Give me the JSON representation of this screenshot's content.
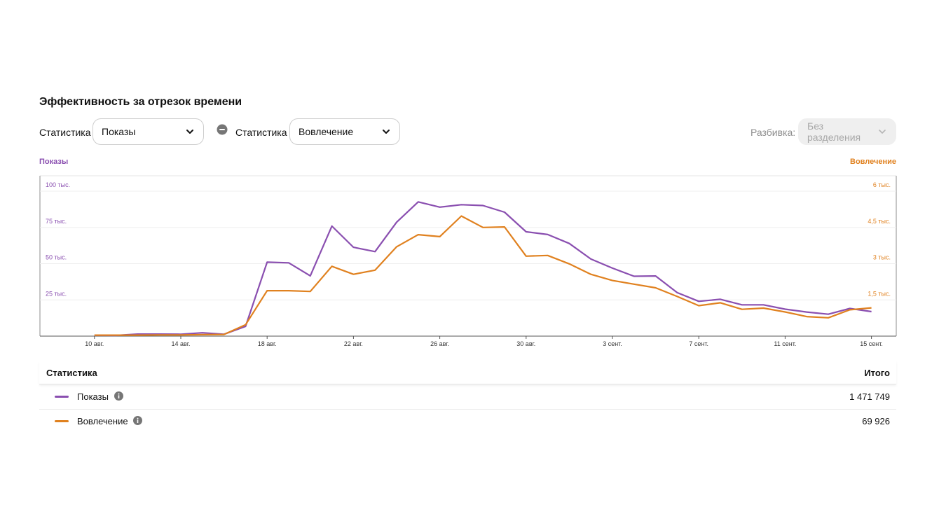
{
  "header": {
    "title": "Эффективность за отрезок времени"
  },
  "controls": {
    "metric1_label": "Статистика",
    "metric1_value": "Показы",
    "metric2_label": "Статистика",
    "metric2_value": "Вовлечение",
    "split_label": "Разбивка:",
    "split_value": "Без разделения"
  },
  "colors": {
    "impressions": "#8a4fb0",
    "engagement": "#e0811f",
    "grid": "#ececec",
    "axis": "#555555"
  },
  "icons": {
    "remove": "minus-circle-icon",
    "chevron": "chevron-down-icon",
    "info": "info-icon"
  },
  "chart_data": {
    "type": "line",
    "x": [
      "9 авг.",
      "10 авг.",
      "11 авг.",
      "12 авг.",
      "13 авг.",
      "14 авг.",
      "15 авг.",
      "16 авг.",
      "17 авг.",
      "18 авг.",
      "19 авг.",
      "20 авг.",
      "21 авг.",
      "22 авг.",
      "23 авг.",
      "24 авг.",
      "25 авг.",
      "26 авг.",
      "27 авг.",
      "28 авг.",
      "29 авг.",
      "30 авг.",
      "31 авг.",
      "1 сент.",
      "2 сент.",
      "3 сент.",
      "4 сент.",
      "5 сент.",
      "6 сент.",
      "7 сент.",
      "8 сент.",
      "9 сент.",
      "10 сент.",
      "11 сент.",
      "12 сент.",
      "13 сент.",
      "14 сент.",
      "15 сент."
    ],
    "x_tick_labels": [
      "10 авг.",
      "14 авг.",
      "18 авг.",
      "22 авг.",
      "26 авг.",
      "30 авг.",
      "3 сент.",
      "7 сент.",
      "11 сент.",
      "15 сент."
    ],
    "x_tick_index": [
      1,
      5,
      9,
      13,
      17,
      21,
      25,
      29,
      33,
      37
    ],
    "y_left": {
      "label": "Показы",
      "ticks": [
        25000,
        50000,
        75000,
        100000
      ],
      "tick_labels": [
        "25 тыс.",
        "50 тыс.",
        "75 тыс.",
        "100 тыс."
      ],
      "range": [
        0,
        100000
      ]
    },
    "y_right": {
      "label": "Вовлечение",
      "ticks": [
        1500,
        3000,
        4500,
        6000
      ],
      "tick_labels": [
        "1,5 тыс.",
        "3 тыс.",
        "4,5 тыс.",
        "6 тыс."
      ],
      "range": [
        0,
        6000
      ]
    },
    "series": [
      {
        "name": "Показы",
        "axis": "left",
        "color": "#8a4fb0",
        "values": [
          null,
          600,
          500,
          1400,
          1400,
          1300,
          2300,
          1300,
          6700,
          51000,
          50600,
          41600,
          75900,
          61300,
          58300,
          78600,
          92600,
          89000,
          90700,
          90100,
          85500,
          72000,
          70100,
          63900,
          53200,
          46900,
          41300,
          41500,
          30000,
          24000,
          25400,
          21600,
          21600,
          18600,
          16600,
          15100,
          19100,
          16900
        ]
      },
      {
        "name": "Вовлечение",
        "axis": "right",
        "color": "#e0811f",
        "values": [
          null,
          40,
          40,
          40,
          50,
          50,
          60,
          70,
          470,
          1880,
          1880,
          1850,
          2890,
          2560,
          2730,
          3700,
          4200,
          4120,
          4970,
          4500,
          4520,
          3310,
          3340,
          2990,
          2560,
          2300,
          2150,
          2000,
          1640,
          1260,
          1380,
          1110,
          1160,
          1000,
          810,
          760,
          1090,
          1170
        ]
      }
    ],
    "grid": true
  },
  "table": {
    "header_name": "Статистика",
    "header_total": "Итого",
    "rows": [
      {
        "name": "Показы",
        "total": "1 471 749",
        "color": "#8a4fb0"
      },
      {
        "name": "Вовлечение",
        "total": "69 926",
        "color": "#e0811f"
      }
    ]
  }
}
